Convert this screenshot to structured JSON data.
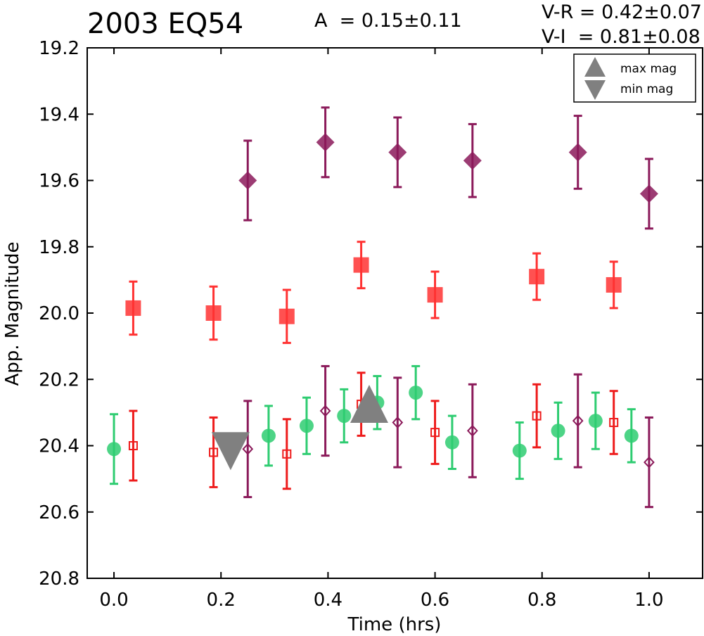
{
  "header": {
    "title": "2003 EQ54",
    "amplitude": "A  = 0.15±0.11",
    "v_r": "V-R = 0.42±0.07",
    "v_i": "V-I  = 0.81±0.08"
  },
  "chart_data": {
    "type": "scatter",
    "xlabel": "Time (hrs)",
    "ylabel": "App. Magnitude",
    "xlim": [
      -0.05,
      1.1
    ],
    "ylim": [
      20.8,
      19.2
    ],
    "y_inverted": true,
    "grid": false,
    "x_ticks": [
      "0.0",
      "0.2",
      "0.4",
      "0.6",
      "0.8",
      "1.0"
    ],
    "y_ticks": [
      "19.2",
      "19.4",
      "19.6",
      "19.8",
      "20.0",
      "20.2",
      "20.4",
      "20.6",
      "20.8"
    ],
    "legend": {
      "position": "top-right",
      "entries": [
        {
          "label": "max mag",
          "marker": "triangle-up",
          "color": "#808080"
        },
        {
          "label": "min mag",
          "marker": "triangle-down",
          "color": "#808080"
        }
      ]
    },
    "series": [
      {
        "marker": "diamond",
        "filled": true,
        "color": "#8b1a5a",
        "opacity": 0.85,
        "points": [
          {
            "x": 0.25,
            "y": 19.6,
            "err": 0.12
          },
          {
            "x": 0.395,
            "y": 19.485,
            "err": 0.105
          },
          {
            "x": 0.53,
            "y": 19.515,
            "err": 0.105
          },
          {
            "x": 0.67,
            "y": 19.54,
            "err": 0.11
          },
          {
            "x": 0.867,
            "y": 19.515,
            "err": 0.11
          },
          {
            "x": 1.0,
            "y": 19.64,
            "err": 0.105
          }
        ]
      },
      {
        "marker": "square",
        "filled": true,
        "color": "#ff3333",
        "opacity": 0.85,
        "points": [
          {
            "x": 0.036,
            "y": 19.985,
            "err": 0.08
          },
          {
            "x": 0.186,
            "y": 20.0,
            "err": 0.08
          },
          {
            "x": 0.323,
            "y": 20.01,
            "err": 0.08
          },
          {
            "x": 0.462,
            "y": 19.855,
            "err": 0.07
          },
          {
            "x": 0.6,
            "y": 19.945,
            "err": 0.07
          },
          {
            "x": 0.79,
            "y": 19.89,
            "err": 0.07
          },
          {
            "x": 0.934,
            "y": 19.915,
            "err": 0.07
          }
        ]
      },
      {
        "marker": "circle",
        "filled": true,
        "color": "#2ecc71",
        "opacity": 0.85,
        "points": [
          {
            "x": 0.0,
            "y": 20.41,
            "err": 0.105
          },
          {
            "x": 0.289,
            "y": 20.37,
            "err": 0.09
          },
          {
            "x": 0.36,
            "y": 20.34,
            "err": 0.085
          },
          {
            "x": 0.43,
            "y": 20.31,
            "err": 0.08
          },
          {
            "x": 0.492,
            "y": 20.27,
            "err": 0.08
          },
          {
            "x": 0.564,
            "y": 20.24,
            "err": 0.08
          },
          {
            "x": 0.632,
            "y": 20.39,
            "err": 0.08
          },
          {
            "x": 0.758,
            "y": 20.415,
            "err": 0.085
          },
          {
            "x": 0.83,
            "y": 20.355,
            "err": 0.085
          },
          {
            "x": 0.9,
            "y": 20.325,
            "err": 0.085
          },
          {
            "x": 0.967,
            "y": 20.37,
            "err": 0.08
          }
        ]
      },
      {
        "marker": "square",
        "filled": false,
        "color": "#ee1c1c",
        "opacity": 1,
        "points": [
          {
            "x": 0.036,
            "y": 20.4,
            "err": 0.105
          },
          {
            "x": 0.186,
            "y": 20.42,
            "err": 0.105
          },
          {
            "x": 0.323,
            "y": 20.425,
            "err": 0.105
          },
          {
            "x": 0.462,
            "y": 20.275,
            "err": 0.095
          },
          {
            "x": 0.6,
            "y": 20.36,
            "err": 0.095
          },
          {
            "x": 0.79,
            "y": 20.31,
            "err": 0.095
          },
          {
            "x": 0.934,
            "y": 20.33,
            "err": 0.095
          }
        ]
      },
      {
        "marker": "diamond",
        "filled": false,
        "color": "#8b1a5a",
        "opacity": 1,
        "points": [
          {
            "x": 0.25,
            "y": 20.41,
            "err": 0.145
          },
          {
            "x": 0.395,
            "y": 20.295,
            "err": 0.135
          },
          {
            "x": 0.53,
            "y": 20.33,
            "err": 0.135
          },
          {
            "x": 0.67,
            "y": 20.355,
            "err": 0.14
          },
          {
            "x": 0.867,
            "y": 20.325,
            "err": 0.14
          },
          {
            "x": 1.0,
            "y": 20.45,
            "err": 0.135
          }
        ]
      },
      {
        "marker": "triangle-up",
        "filled": true,
        "color": "#808080",
        "opacity": 1,
        "points": [
          {
            "x": 0.477,
            "y": 20.28
          }
        ]
      },
      {
        "marker": "triangle-down",
        "filled": true,
        "color": "#808080",
        "opacity": 1,
        "points": [
          {
            "x": 0.218,
            "y": 20.41
          }
        ]
      }
    ]
  }
}
